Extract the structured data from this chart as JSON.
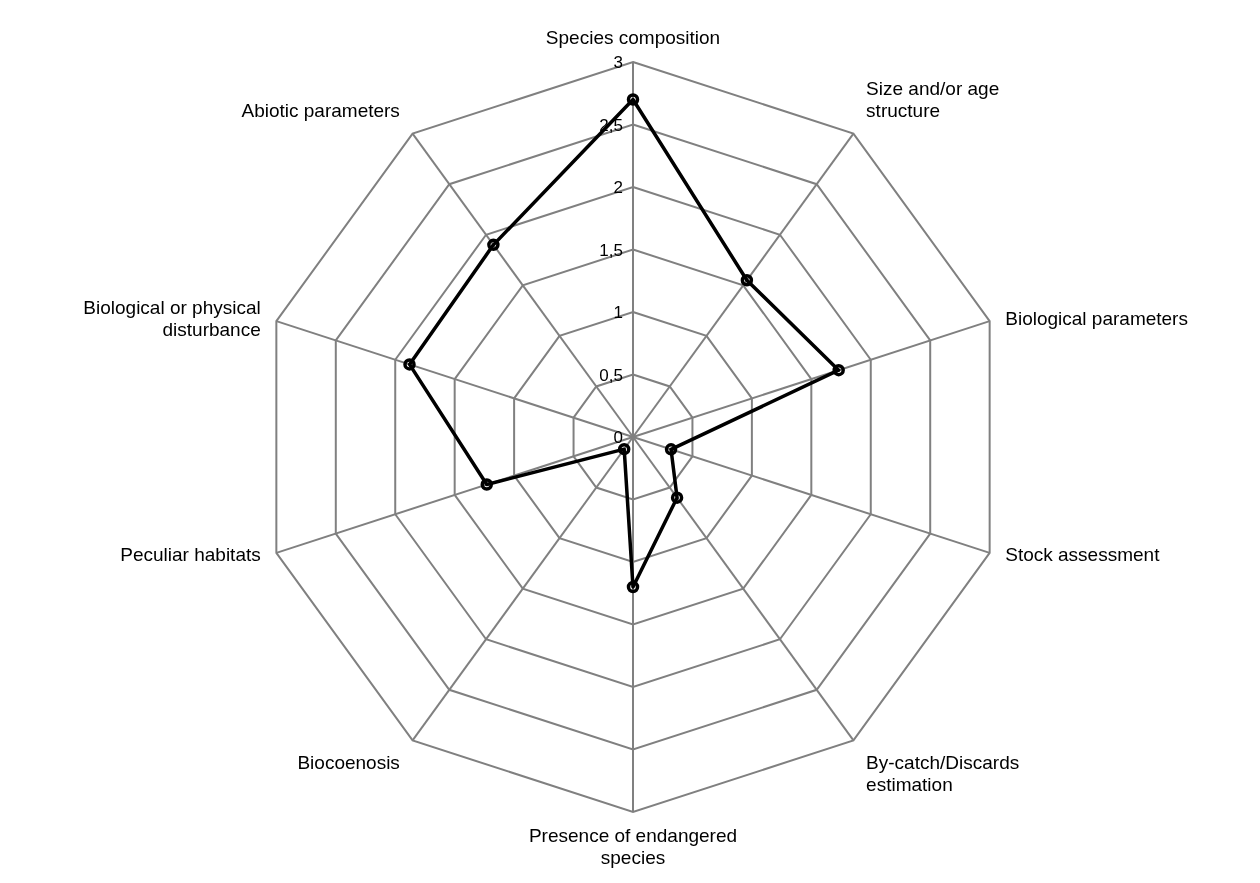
{
  "chart_data": {
    "type": "radar",
    "categories": [
      "Species composition",
      "Size and/or age structure",
      "Biological parameters",
      "Stock assessment",
      "By-catch/Discards estimation",
      "Presence of endangered species",
      "Biocoenosis",
      "Peculiar habitats",
      "Biological or physical disturbance",
      "Abiotic parameters"
    ],
    "series": [
      {
        "color": "#000000",
        "values": [
          2.7,
          1.55,
          1.73,
          0.32,
          0.6,
          1.2,
          0.12,
          1.23,
          1.88,
          1.9
        ]
      }
    ],
    "ylim": [
      0,
      3
    ],
    "yticks": [
      0,
      {
        "value": 0.5,
        "label": "0,5"
      },
      1,
      {
        "value": 1.5,
        "label": "1,5"
      },
      2,
      {
        "value": 2.5,
        "label": "2,5"
      },
      3
    ],
    "grid": true,
    "marker": "circle"
  }
}
